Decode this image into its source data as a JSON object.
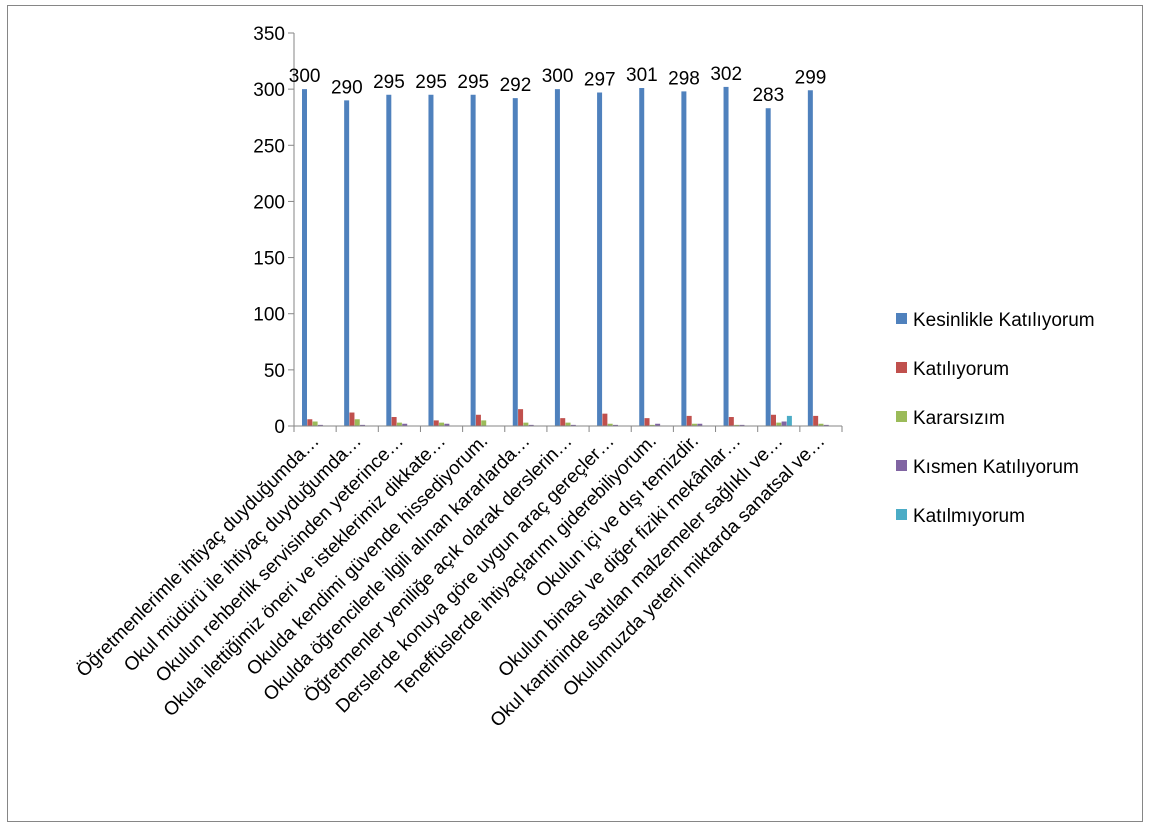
{
  "chart_data": {
    "type": "bar",
    "title": "",
    "xlabel": "",
    "ylabel": "",
    "ylim": [
      0,
      350
    ],
    "yticks": [
      0,
      50,
      100,
      150,
      200,
      250,
      300,
      350
    ],
    "grid": false,
    "legend_position": "right",
    "categories": [
      "Öğretmenlerimle ihtiyaç duyduğumda…",
      "Okul müdürü ile ihtiyaç duyduğumda…",
      "Okulun rehberlik servisinden yeterince…",
      "Okula ilettiğimiz öneri ve isteklerimiz dikkate…",
      "Okulda kendimi güvende hissediyorum.",
      "Okulda öğrencilerle ilgili alınan kararlarda…",
      "Öğretmenler yeniliğe açık olarak derslerin…",
      "Derslerde konuya göre uygun araç gereçler…",
      "Teneffüslerde ihtiyaçlarımı giderebiliyorum.",
      "Okulun içi ve dışı temizdir.",
      "Okulun binası ve diğer fiziki mekânlar…",
      "Okul kantininde satılan malzemeler sağlıklı ve…",
      "Okulumuzda yeterli miktarda sanatsal ve…"
    ],
    "series": [
      {
        "name": "Kesinlikle Katılıyorum",
        "color": "#4F81BD",
        "values": [
          300,
          290,
          295,
          295,
          295,
          292,
          300,
          297,
          301,
          298,
          302,
          283,
          299
        ],
        "labels": [
          "300",
          "290",
          "295",
          "295",
          "295",
          "292",
          "300",
          "297",
          "301",
          "298",
          "302",
          "283",
          "299"
        ]
      },
      {
        "name": "Katılıyorum",
        "color": "#C0504D",
        "values": [
          6,
          12,
          8,
          5,
          10,
          15,
          7,
          11,
          7,
          9,
          8,
          10,
          9
        ]
      },
      {
        "name": "Kararsızım",
        "color": "#9BBB59",
        "values": [
          4,
          6,
          3,
          3,
          5,
          3,
          3,
          2,
          1,
          2,
          1,
          3,
          2
        ]
      },
      {
        "name": "Kısmen Katılıyorum",
        "color": "#8064A2",
        "values": [
          1,
          1,
          2,
          2,
          0,
          1,
          1,
          1,
          2,
          2,
          1,
          4,
          1
        ]
      },
      {
        "name": "Katılmıyorum",
        "color": "#4BACC6",
        "values": [
          0,
          0,
          0,
          0,
          0,
          0,
          0,
          0,
          0,
          0,
          0,
          9,
          0
        ]
      }
    ]
  }
}
